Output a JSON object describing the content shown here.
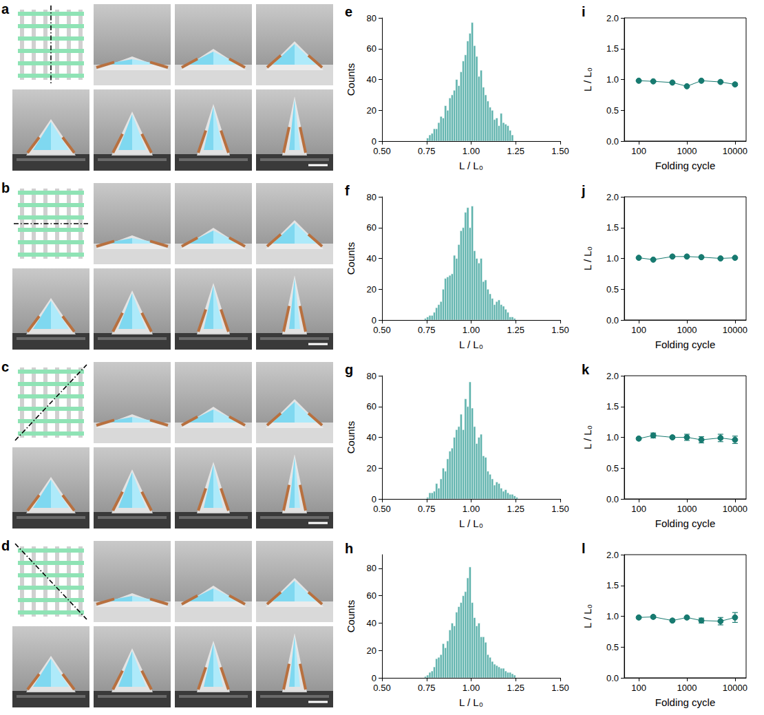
{
  "photo_panels": [
    {
      "panel": "a"
    },
    {
      "panel": "b"
    },
    {
      "panel": "c"
    },
    {
      "panel": "d"
    }
  ],
  "chart_data": [
    {
      "type": "histogram",
      "panel": "e",
      "x_label": "L / L₀",
      "y_label": "Counts",
      "color": "#5fb3ad",
      "grid": false,
      "bins": [
        0.7,
        0.7125,
        0.725,
        0.7375,
        0.75,
        0.7625,
        0.775,
        0.7875,
        0.8,
        0.8125,
        0.825,
        0.8375,
        0.85,
        0.8625,
        0.875,
        0.8875,
        0.9,
        0.9125,
        0.925,
        0.9375,
        0.95,
        0.9625,
        0.975,
        0.9875,
        1.0,
        1.0125,
        1.025,
        1.0375,
        1.05,
        1.0625,
        1.075,
        1.0875,
        1.1,
        1.1125,
        1.125,
        1.1375,
        1.15,
        1.1625,
        1.175,
        1.1875,
        1.2,
        1.2125,
        1.225,
        1.2375,
        1.25,
        1.2625,
        1.275,
        1.2875,
        1.3
      ],
      "counts": [
        0,
        0,
        0,
        0,
        2,
        4,
        5,
        8,
        8,
        12,
        16,
        15,
        23,
        20,
        28,
        30,
        33,
        40,
        36,
        45,
        52,
        56,
        65,
        70,
        77,
        62,
        55,
        42,
        46,
        35,
        30,
        26,
        22,
        20,
        14,
        15,
        10,
        18,
        12,
        11,
        10,
        7,
        4,
        0,
        0,
        0,
        0,
        0
      ],
      "xlim": [
        0.5,
        1.5
      ],
      "xticks": [
        {
          "value": 0.5,
          "label": "0.50"
        },
        {
          "value": 0.75,
          "label": "0.75"
        },
        {
          "value": 1,
          "label": "1.00"
        },
        {
          "value": 1.25,
          "label": "1.25"
        },
        {
          "value": 1.5,
          "label": "1.50"
        }
      ],
      "ylim": [
        0,
        80
      ],
      "yticks": [
        0,
        20,
        40,
        60,
        80
      ]
    },
    {
      "type": "histogram",
      "panel": "f",
      "x_label": "L / L₀",
      "y_label": "Counts",
      "color": "#5fb3ad",
      "grid": false,
      "bins": [
        0.7,
        0.7125,
        0.725,
        0.7375,
        0.75,
        0.7625,
        0.775,
        0.7875,
        0.8,
        0.8125,
        0.825,
        0.8375,
        0.85,
        0.8625,
        0.875,
        0.8875,
        0.9,
        0.9125,
        0.925,
        0.9375,
        0.95,
        0.9625,
        0.975,
        0.9875,
        1.0,
        1.0125,
        1.025,
        1.0375,
        1.05,
        1.0625,
        1.075,
        1.0875,
        1.1,
        1.1125,
        1.125,
        1.1375,
        1.15,
        1.1625,
        1.175,
        1.1875,
        1.2,
        1.2125,
        1.225,
        1.2375,
        1.25,
        1.2625,
        1.275,
        1.2875,
        1.3
      ],
      "counts": [
        0,
        0,
        0,
        1,
        2,
        3,
        3,
        5,
        8,
        10,
        12,
        20,
        27,
        28,
        29,
        30,
        42,
        40,
        49,
        58,
        60,
        70,
        73,
        60,
        74,
        45,
        40,
        37,
        40,
        25,
        26,
        20,
        17,
        14,
        10,
        12,
        13,
        10,
        9,
        7,
        5,
        2,
        2,
        1,
        0,
        0,
        0,
        0
      ],
      "xlim": [
        0.5,
        1.5
      ],
      "xticks": [
        {
          "value": 0.5,
          "label": "0.50"
        },
        {
          "value": 0.75,
          "label": "0.75"
        },
        {
          "value": 1,
          "label": "1.00"
        },
        {
          "value": 1.25,
          "label": "1.25"
        },
        {
          "value": 1.5,
          "label": "1.50"
        }
      ],
      "ylim": [
        0,
        80
      ],
      "yticks": [
        0,
        20,
        40,
        60,
        80
      ]
    },
    {
      "type": "histogram",
      "panel": "g",
      "x_label": "L / L₀",
      "y_label": "Counts",
      "color": "#5fb3ad",
      "grid": false,
      "bins": [
        0.7,
        0.7125,
        0.725,
        0.7375,
        0.75,
        0.7625,
        0.775,
        0.7875,
        0.8,
        0.8125,
        0.825,
        0.8375,
        0.85,
        0.8625,
        0.875,
        0.8875,
        0.9,
        0.9125,
        0.925,
        0.9375,
        0.95,
        0.9625,
        0.975,
        0.9875,
        1.0,
        1.0125,
        1.025,
        1.0375,
        1.05,
        1.0625,
        1.075,
        1.0875,
        1.1,
        1.1125,
        1.125,
        1.1375,
        1.15,
        1.1625,
        1.175,
        1.1875,
        1.2,
        1.2125,
        1.225,
        1.2375,
        1.25,
        1.2625,
        1.275,
        1.2875,
        1.3
      ],
      "counts": [
        0,
        0,
        0,
        0,
        1,
        4,
        4,
        5,
        10,
        7,
        13,
        20,
        18,
        26,
        31,
        33,
        40,
        45,
        47,
        55,
        45,
        65,
        60,
        76,
        59,
        47,
        36,
        40,
        42,
        28,
        27,
        18,
        16,
        13,
        9,
        11,
        10,
        7,
        5,
        6,
        4,
        3,
        3,
        2,
        1,
        0,
        0,
        0
      ],
      "xlim": [
        0.5,
        1.5
      ],
      "xticks": [
        {
          "value": 0.5,
          "label": "0.50"
        },
        {
          "value": 0.75,
          "label": "0.75"
        },
        {
          "value": 1,
          "label": "1.00"
        },
        {
          "value": 1.25,
          "label": "1.25"
        },
        {
          "value": 1.5,
          "label": "1.50"
        }
      ],
      "ylim": [
        0,
        80
      ],
      "yticks": [
        0,
        20,
        40,
        60,
        80
      ]
    },
    {
      "type": "histogram",
      "panel": "h",
      "x_label": "L / L₀",
      "y_label": "Counts",
      "color": "#5fb3ad",
      "grid": false,
      "bins": [
        0.7,
        0.7125,
        0.725,
        0.7375,
        0.75,
        0.7625,
        0.775,
        0.7875,
        0.8,
        0.8125,
        0.825,
        0.8375,
        0.85,
        0.8625,
        0.875,
        0.8875,
        0.9,
        0.9125,
        0.925,
        0.9375,
        0.95,
        0.9625,
        0.975,
        0.9875,
        1.0,
        1.0125,
        1.025,
        1.0375,
        1.05,
        1.0625,
        1.075,
        1.0875,
        1.1,
        1.1125,
        1.125,
        1.1375,
        1.15,
        1.1625,
        1.175,
        1.1875,
        1.2,
        1.2125,
        1.225,
        1.2375,
        1.25,
        1.2625,
        1.275,
        1.2875,
        1.3
      ],
      "counts": [
        0,
        0,
        0,
        1,
        2,
        4,
        5,
        8,
        14,
        15,
        17,
        25,
        22,
        27,
        35,
        40,
        38,
        48,
        52,
        55,
        60,
        63,
        73,
        81,
        55,
        44,
        38,
        40,
        30,
        30,
        26,
        17,
        15,
        12,
        10,
        9,
        8,
        7,
        7,
        5,
        4,
        4,
        3,
        2,
        0,
        0,
        0,
        0
      ],
      "xlim": [
        0.5,
        1.5
      ],
      "xticks": [
        {
          "value": 0.5,
          "label": "0.50"
        },
        {
          "value": 0.75,
          "label": "0.75"
        },
        {
          "value": 1,
          "label": "1.00"
        },
        {
          "value": 1.25,
          "label": "1.25"
        },
        {
          "value": 1.5,
          "label": "1.50"
        }
      ],
      "ylim": [
        0,
        90
      ],
      "yticks": [
        0,
        20,
        40,
        60,
        80
      ]
    },
    {
      "type": "line",
      "panel": "i",
      "x_label": "Folding cycle",
      "y_label": "L / L₀",
      "color": "#177a70",
      "marker": "circle",
      "log": "x",
      "grid": false,
      "x": [
        100,
        200,
        500,
        1000,
        2000,
        5000,
        10000
      ],
      "values": [
        0.98,
        0.97,
        0.95,
        0.89,
        0.98,
        0.96,
        0.92
      ],
      "errors": [
        0.01,
        0.01,
        0.01,
        0.01,
        0.01,
        0.01,
        0.02
      ],
      "xlim": [
        50,
        17000
      ],
      "xticks": [
        100,
        1000,
        10000
      ],
      "ylim": [
        0,
        2
      ],
      "yticks": [
        {
          "value": 0,
          "label": "0.0"
        },
        0.5,
        {
          "value": 1,
          "label": "1.0"
        },
        1.5,
        {
          "value": 2,
          "label": "2.0"
        }
      ]
    },
    {
      "type": "line",
      "panel": "j",
      "x_label": "Folding cycle",
      "y_label": "L / L₀",
      "color": "#177a70",
      "marker": "circle",
      "log": "x",
      "grid": false,
      "x": [
        100,
        200,
        500,
        1000,
        2000,
        5000,
        10000
      ],
      "values": [
        1.01,
        0.98,
        1.03,
        1.03,
        1.02,
        1.0,
        1.01
      ],
      "errors": [
        0.01,
        0.01,
        0.01,
        0.01,
        0.01,
        0.01,
        0.01
      ],
      "xlim": [
        50,
        17000
      ],
      "xticks": [
        100,
        1000,
        10000
      ],
      "ylim": [
        0,
        2
      ],
      "yticks": [
        {
          "value": 0,
          "label": "0.0"
        },
        0.5,
        {
          "value": 1,
          "label": "1.0"
        },
        1.5,
        {
          "value": 2,
          "label": "2.0"
        }
      ]
    },
    {
      "type": "line",
      "panel": "k",
      "x_label": "Folding cycle",
      "y_label": "L / L₀",
      "color": "#177a70",
      "marker": "circle",
      "log": "x",
      "grid": false,
      "x": [
        100,
        200,
        500,
        1000,
        2000,
        5000,
        10000
      ],
      "values": [
        0.98,
        1.03,
        1.0,
        1.0,
        0.96,
        0.99,
        0.96
      ],
      "errors": [
        0.02,
        0.04,
        0.02,
        0.05,
        0.05,
        0.06,
        0.06
      ],
      "xlim": [
        50,
        17000
      ],
      "xticks": [
        100,
        1000,
        10000
      ],
      "ylim": [
        0,
        2
      ],
      "yticks": [
        {
          "value": 0,
          "label": "0.0"
        },
        0.5,
        {
          "value": 1,
          "label": "1.0"
        },
        1.5,
        {
          "value": 2,
          "label": "2.0"
        }
      ]
    },
    {
      "type": "line",
      "panel": "l",
      "x_label": "Folding cycle",
      "y_label": "L / L₀",
      "color": "#177a70",
      "marker": "circle",
      "log": "x",
      "grid": false,
      "x": [
        100,
        200,
        500,
        1000,
        2000,
        5000,
        10000
      ],
      "values": [
        0.98,
        0.99,
        0.93,
        0.98,
        0.93,
        0.92,
        0.98
      ],
      "errors": [
        0.02,
        0.02,
        0.02,
        0.02,
        0.04,
        0.06,
        0.08
      ],
      "xlim": [
        50,
        17000
      ],
      "xticks": [
        100,
        1000,
        10000
      ],
      "ylim": [
        0,
        2
      ],
      "yticks": [
        {
          "value": 0,
          "label": "0.0"
        },
        0.5,
        {
          "value": 1,
          "label": "1.0"
        },
        1.5,
        {
          "value": 2,
          "label": "2.0"
        }
      ]
    }
  ]
}
